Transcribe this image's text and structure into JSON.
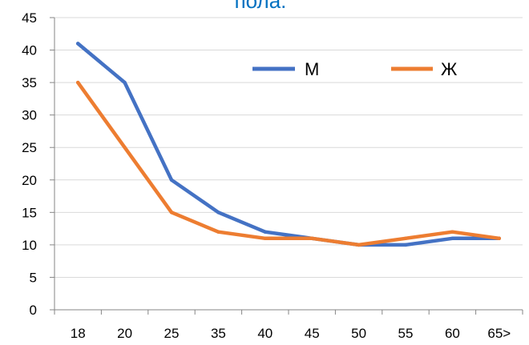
{
  "chart_data": {
    "type": "line",
    "title": "пола.",
    "xlabel": "",
    "ylabel": "",
    "categories": [
      "18",
      "20",
      "25",
      "35",
      "40",
      "45",
      "50",
      "55",
      "60",
      "65>"
    ],
    "ylim": [
      0,
      45
    ],
    "yticks": [
      "0",
      "5",
      "10",
      "15",
      "20",
      "25",
      "30",
      "35",
      "40",
      "45"
    ],
    "grid": true,
    "legend_position": "top-right",
    "series": [
      {
        "name": "М",
        "color": "#4472C4",
        "values": [
          41,
          35,
          20,
          15,
          12,
          11,
          10,
          10,
          11,
          11
        ]
      },
      {
        "name": "Ж",
        "color": "#ED7D31",
        "values": [
          35,
          25,
          15,
          12,
          11,
          11,
          10,
          11,
          12,
          11
        ]
      }
    ],
    "title_color": "#0070C0"
  }
}
